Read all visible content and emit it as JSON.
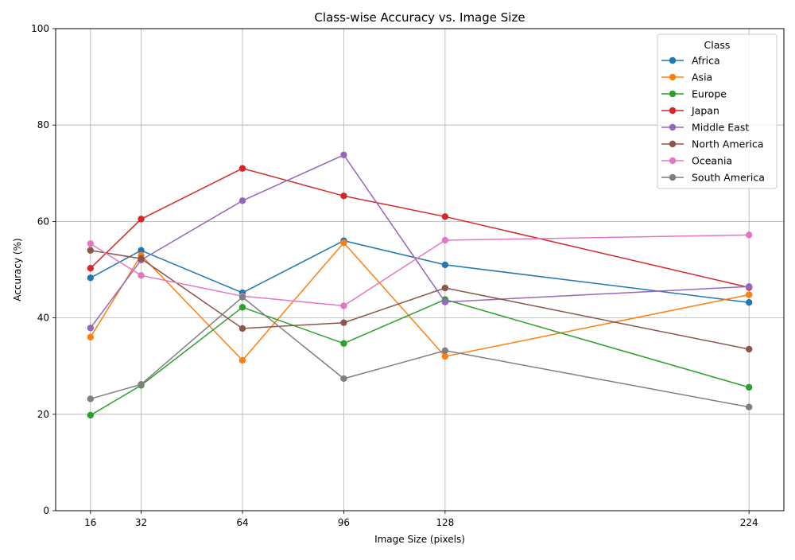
{
  "chart_data": {
    "type": "line",
    "title": "Class-wise Accuracy vs. Image Size",
    "xlabel": "Image Size (pixels)",
    "ylabel": "Accuracy (%)",
    "x": [
      16,
      32,
      64,
      96,
      128,
      224
    ],
    "x_ticks": [
      "16",
      "32",
      "64",
      "96",
      "128",
      "224"
    ],
    "y_ticks": [
      "0",
      "20",
      "40",
      "60",
      "80",
      "100"
    ],
    "xlim": [
      5,
      235
    ],
    "ylim": [
      0,
      100
    ],
    "grid": true,
    "markers": "circle",
    "legend": {
      "title": "Class",
      "placement": "top-right"
    },
    "series": [
      {
        "name": "Africa",
        "color": "#1f77b4",
        "values": [
          48.3,
          54.0,
          45.2,
          56.0,
          51.0,
          43.2
        ]
      },
      {
        "name": "Asia",
        "color": "#ff7f0e",
        "values": [
          36.0,
          53.0,
          31.2,
          55.6,
          32.0,
          44.8
        ]
      },
      {
        "name": "Europe",
        "color": "#2ca02c",
        "values": [
          19.8,
          26.0,
          42.2,
          34.7,
          43.8,
          25.6
        ]
      },
      {
        "name": "Japan",
        "color": "#d62728",
        "values": [
          50.3,
          60.5,
          71.0,
          65.3,
          61.0,
          46.3
        ]
      },
      {
        "name": "Middle East",
        "color": "#9467bd",
        "values": [
          37.9,
          52.0,
          64.3,
          73.8,
          43.3,
          46.5
        ]
      },
      {
        "name": "North America",
        "color": "#8c564b",
        "values": [
          54.0,
          52.3,
          37.8,
          39.0,
          46.2,
          33.5
        ]
      },
      {
        "name": "Oceania",
        "color": "#e377c2",
        "values": [
          55.4,
          48.8,
          44.5,
          42.5,
          56.1,
          57.2
        ]
      },
      {
        "name": "South America",
        "color": "#7f7f7f",
        "values": [
          23.2,
          26.2,
          44.3,
          27.4,
          33.2,
          21.5
        ]
      }
    ]
  }
}
